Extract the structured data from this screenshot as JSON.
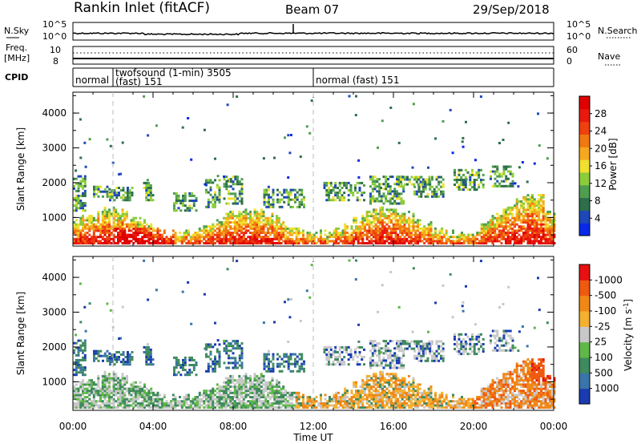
{
  "header": {
    "station": "Rankin Inlet (fitACF)",
    "beam": "Beam 07",
    "date": "29/Sep/2018"
  },
  "noise_panel": {
    "left_label": "N.Sky",
    "left_ticks": [
      "10^5",
      "10^0"
    ],
    "right_label": "N.Search",
    "right_ticks": [
      "10^5",
      "10^0"
    ]
  },
  "freq_panel": {
    "left_label_1": "Freq.",
    "left_label_2": "[MHz]",
    "left_ticks": [
      "10",
      "8"
    ],
    "right_label": "Nave",
    "right_ticks": [
      "60",
      "0"
    ]
  },
  "cpid": {
    "label": "CPID",
    "segments": [
      {
        "text": "normal",
        "start_h": 0.0,
        "end_h": 2.0
      },
      {
        "text": "twofsound (1-min) 3505",
        "line2": "(fast) 151",
        "start_h": 2.0,
        "end_h": 12.0
      },
      {
        "text": "normal (fast) 151",
        "start_h": 12.0,
        "end_h": 24.0
      }
    ]
  },
  "chart_data": [
    {
      "type": "heatmap",
      "name": "power",
      "ylabel": "Slant Range [km]",
      "ylim": [
        180,
        4600
      ],
      "yticks": [
        1000,
        2000,
        3000,
        4000
      ],
      "xlim_hours": [
        0,
        24
      ],
      "colorbar": {
        "title": "Power [dB]",
        "tick_labels": [
          "4",
          "8",
          "12",
          "16",
          "20",
          "24",
          "28"
        ],
        "colors": [
          "#0a28e8",
          "#1e48b8",
          "#2e6f4a",
          "#4f9e4f",
          "#8ccc3a",
          "#f0e030",
          "#f5a820",
          "#f07810",
          "#ef4010",
          "#e81a10",
          "#e00000"
        ]
      }
    },
    {
      "type": "heatmap",
      "name": "velocity",
      "ylabel": "Slant Range [km]",
      "ylim": [
        180,
        4600
      ],
      "yticks": [
        1000,
        2000,
        3000,
        4000
      ],
      "xlim_hours": [
        0,
        24
      ],
      "xlabel": "Time UT",
      "xtick_labels": [
        "00:00",
        "04:00",
        "08:00",
        "12:00",
        "16:00",
        "20:00",
        "00:00"
      ],
      "colorbar": {
        "title": "Velocity [m s",
        "title_sup": "-1",
        "title_end": "]",
        "tick_labels": [
          "1000",
          "500",
          "100",
          "25",
          "-25",
          "-100",
          "-500",
          "-1000"
        ],
        "colors": [
          "#1a3cb0",
          "#3a74a8",
          "#3f8a5e",
          "#5fb848",
          "#c8c8c8",
          "#f5b030",
          "#f08818",
          "#ef5a10",
          "#e81010"
        ]
      }
    }
  ]
}
